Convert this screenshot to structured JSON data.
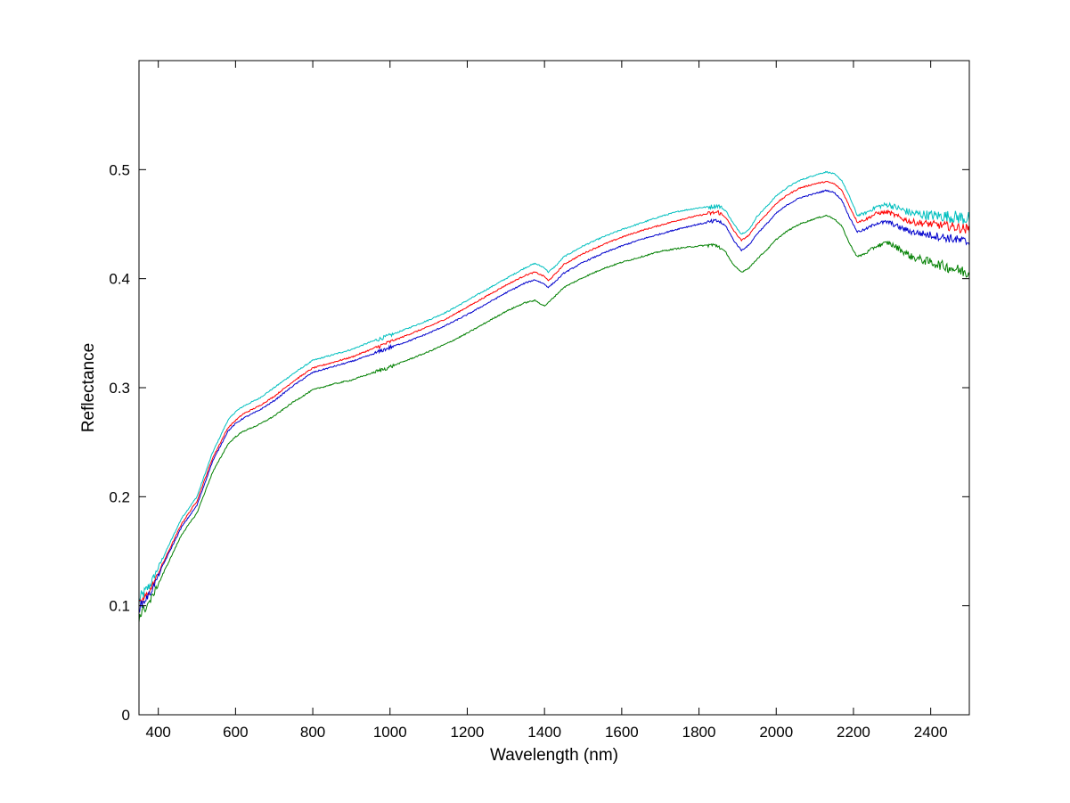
{
  "chart_data": {
    "type": "line",
    "title": "",
    "xlabel": "Wavelength (nm)",
    "ylabel": "Reflectance",
    "xlim": [
      350,
      2500
    ],
    "ylim": [
      0,
      0.6
    ],
    "x_ticks": [
      400,
      600,
      800,
      1000,
      1200,
      1400,
      1600,
      1800,
      2000,
      2200,
      2400
    ],
    "y_ticks": [
      0,
      0.1,
      0.2,
      0.3,
      0.4,
      0.5
    ],
    "y_tick_labels": [
      "0",
      "0.1",
      "0.2",
      "0.3",
      "0.4",
      "0.5"
    ],
    "grid": false,
    "legend": "none",
    "series": [
      {
        "color": "#00bfbf",
        "noise": 0.006,
        "x": [
          350,
          380,
          420,
          460,
          500,
          540,
          580,
          600,
          620,
          660,
          700,
          750,
          800,
          850,
          900,
          950,
          1000,
          1050,
          1100,
          1150,
          1200,
          1250,
          1300,
          1350,
          1375,
          1400,
          1410,
          1430,
          1450,
          1500,
          1550,
          1600,
          1650,
          1700,
          1750,
          1800,
          1830,
          1850,
          1870,
          1890,
          1910,
          1930,
          1950,
          1980,
          2000,
          2030,
          2060,
          2100,
          2130,
          2150,
          2170,
          2190,
          2210,
          2230,
          2260,
          2290,
          2320,
          2350,
          2400,
          2450,
          2500
        ],
        "y": [
          0.105,
          0.12,
          0.15,
          0.18,
          0.2,
          0.24,
          0.27,
          0.278,
          0.283,
          0.29,
          0.3,
          0.313,
          0.325,
          0.33,
          0.335,
          0.342,
          0.348,
          0.355,
          0.362,
          0.37,
          0.38,
          0.39,
          0.4,
          0.41,
          0.414,
          0.41,
          0.406,
          0.412,
          0.42,
          0.43,
          0.438,
          0.445,
          0.451,
          0.457,
          0.462,
          0.465,
          0.466,
          0.467,
          0.462,
          0.45,
          0.441,
          0.445,
          0.457,
          0.468,
          0.476,
          0.484,
          0.49,
          0.495,
          0.498,
          0.496,
          0.49,
          0.475,
          0.458,
          0.46,
          0.466,
          0.468,
          0.464,
          0.46,
          0.458,
          0.457,
          0.455
        ]
      },
      {
        "color": "#ff0000",
        "noise": 0.004,
        "x": [
          350,
          380,
          420,
          460,
          500,
          540,
          580,
          600,
          620,
          660,
          700,
          750,
          800,
          850,
          900,
          950,
          1000,
          1050,
          1100,
          1150,
          1200,
          1250,
          1300,
          1350,
          1375,
          1400,
          1410,
          1430,
          1450,
          1500,
          1550,
          1600,
          1650,
          1700,
          1750,
          1800,
          1830,
          1850,
          1870,
          1890,
          1910,
          1930,
          1950,
          1980,
          2000,
          2030,
          2060,
          2100,
          2130,
          2150,
          2170,
          2190,
          2210,
          2230,
          2260,
          2290,
          2320,
          2350,
          2400,
          2450,
          2500
        ],
        "y": [
          0.1,
          0.115,
          0.145,
          0.175,
          0.196,
          0.235,
          0.263,
          0.27,
          0.276,
          0.283,
          0.292,
          0.306,
          0.318,
          0.323,
          0.328,
          0.335,
          0.342,
          0.349,
          0.356,
          0.364,
          0.374,
          0.384,
          0.394,
          0.403,
          0.406,
          0.402,
          0.398,
          0.405,
          0.413,
          0.423,
          0.431,
          0.438,
          0.444,
          0.449,
          0.454,
          0.458,
          0.46,
          0.461,
          0.456,
          0.444,
          0.435,
          0.44,
          0.45,
          0.461,
          0.469,
          0.477,
          0.483,
          0.487,
          0.489,
          0.487,
          0.481,
          0.466,
          0.452,
          0.454,
          0.46,
          0.461,
          0.456,
          0.452,
          0.45,
          0.448,
          0.445
        ]
      },
      {
        "color": "#0000cc",
        "noise": 0.004,
        "x": [
          350,
          380,
          420,
          460,
          500,
          540,
          580,
          600,
          620,
          660,
          700,
          750,
          800,
          850,
          900,
          950,
          1000,
          1050,
          1100,
          1150,
          1200,
          1250,
          1300,
          1350,
          1375,
          1400,
          1410,
          1430,
          1450,
          1500,
          1550,
          1600,
          1650,
          1700,
          1750,
          1800,
          1830,
          1850,
          1870,
          1890,
          1910,
          1930,
          1950,
          1980,
          2000,
          2030,
          2060,
          2100,
          2130,
          2150,
          2170,
          2190,
          2210,
          2230,
          2260,
          2290,
          2320,
          2350,
          2400,
          2450,
          2500
        ],
        "y": [
          0.098,
          0.112,
          0.143,
          0.172,
          0.192,
          0.232,
          0.26,
          0.267,
          0.272,
          0.279,
          0.288,
          0.302,
          0.314,
          0.319,
          0.324,
          0.33,
          0.337,
          0.343,
          0.35,
          0.358,
          0.367,
          0.377,
          0.387,
          0.396,
          0.399,
          0.395,
          0.392,
          0.398,
          0.405,
          0.415,
          0.423,
          0.43,
          0.436,
          0.441,
          0.446,
          0.45,
          0.452,
          0.453,
          0.448,
          0.435,
          0.426,
          0.431,
          0.441,
          0.452,
          0.46,
          0.468,
          0.474,
          0.478,
          0.481,
          0.479,
          0.472,
          0.456,
          0.443,
          0.445,
          0.451,
          0.452,
          0.447,
          0.443,
          0.44,
          0.437,
          0.433
        ]
      },
      {
        "color": "#007f00",
        "noise": 0.005,
        "x": [
          350,
          380,
          420,
          460,
          500,
          540,
          580,
          600,
          620,
          660,
          700,
          750,
          800,
          850,
          900,
          950,
          1000,
          1050,
          1100,
          1150,
          1200,
          1250,
          1300,
          1350,
          1375,
          1400,
          1410,
          1430,
          1450,
          1500,
          1550,
          1600,
          1650,
          1700,
          1750,
          1800,
          1830,
          1850,
          1870,
          1890,
          1910,
          1930,
          1950,
          1980,
          2000,
          2030,
          2060,
          2100,
          2130,
          2150,
          2170,
          2190,
          2210,
          2230,
          2260,
          2290,
          2320,
          2350,
          2400,
          2450,
          2500
        ],
        "y": [
          0.09,
          0.105,
          0.135,
          0.165,
          0.185,
          0.222,
          0.248,
          0.255,
          0.26,
          0.266,
          0.274,
          0.287,
          0.298,
          0.303,
          0.307,
          0.313,
          0.319,
          0.326,
          0.333,
          0.341,
          0.35,
          0.36,
          0.37,
          0.378,
          0.38,
          0.375,
          0.378,
          0.385,
          0.392,
          0.401,
          0.409,
          0.415,
          0.42,
          0.425,
          0.428,
          0.43,
          0.431,
          0.43,
          0.424,
          0.412,
          0.406,
          0.41,
          0.418,
          0.428,
          0.436,
          0.444,
          0.45,
          0.455,
          0.458,
          0.455,
          0.448,
          0.432,
          0.42,
          0.423,
          0.43,
          0.433,
          0.427,
          0.42,
          0.415,
          0.41,
          0.405
        ]
      }
    ]
  }
}
